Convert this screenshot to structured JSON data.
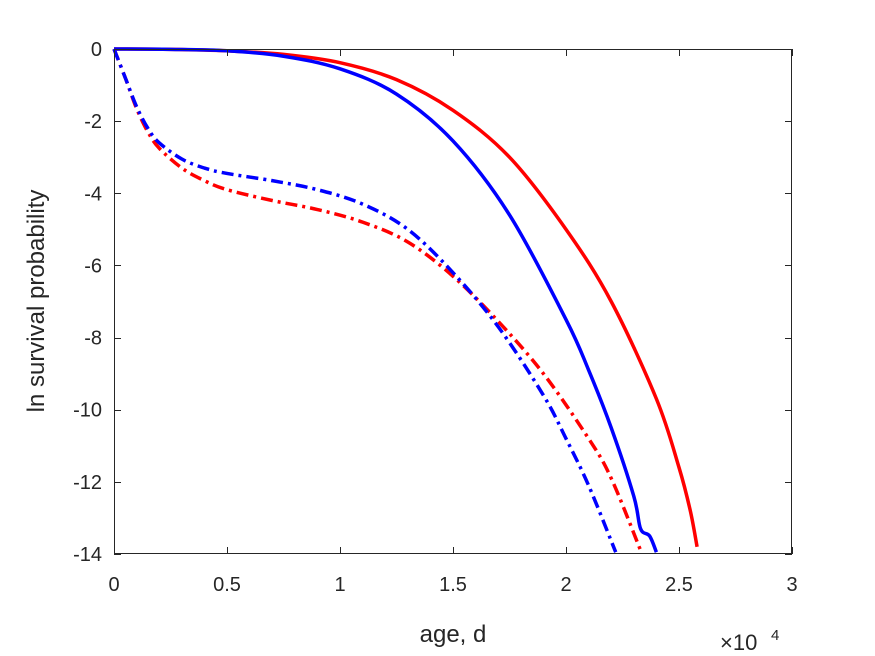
{
  "chart_data": {
    "type": "line",
    "xlabel": "age, d",
    "ylabel": "ln survival probability",
    "x_exponent_base": "×10",
    "x_exponent_power": "4",
    "xlim": [
      0,
      3
    ],
    "ylim": [
      -14,
      0
    ],
    "x_unit_note": "x values in units of 10^4 days",
    "xticks": [
      0,
      0.5,
      1,
      1.5,
      2,
      2.5,
      3
    ],
    "xtick_labels": [
      "0",
      "0.5",
      "1",
      "1.5",
      "2",
      "2.5",
      "3"
    ],
    "yticks": [
      0,
      -2,
      -4,
      -6,
      -8,
      -10,
      -12,
      -14
    ],
    "ytick_labels": [
      "0",
      "-2",
      "-4",
      "-6",
      "-8",
      "-10",
      "-12",
      "-14"
    ],
    "grid": false,
    "legend": "none",
    "series": [
      {
        "color": "#ff0000",
        "style": "solid",
        "x": [
          0.0,
          0.25,
          0.5,
          0.75,
          1.0,
          1.25,
          1.5,
          1.75,
          2.0,
          2.2,
          2.4,
          2.5,
          2.55,
          2.58
        ],
        "y": [
          0.0,
          -0.01,
          -0.05,
          -0.15,
          -0.38,
          -0.85,
          -1.7,
          -3.0,
          -5.0,
          -7.0,
          -9.7,
          -11.6,
          -12.8,
          -13.8
        ]
      },
      {
        "color": "#0000ff",
        "style": "solid",
        "x": [
          0.0,
          0.25,
          0.5,
          0.75,
          1.0,
          1.25,
          1.5,
          1.75,
          2.0,
          2.1,
          2.2,
          2.3,
          2.33,
          2.37,
          2.4
        ],
        "y": [
          0.0,
          -0.01,
          -0.05,
          -0.2,
          -0.55,
          -1.25,
          -2.55,
          -4.6,
          -7.5,
          -8.9,
          -10.5,
          -12.4,
          -13.3,
          -13.5,
          -13.95
        ]
      },
      {
        "color": "#ff0000",
        "style": "dashdot",
        "x": [
          0.0,
          0.05,
          0.1,
          0.15,
          0.2,
          0.3,
          0.4,
          0.5,
          0.7,
          0.9,
          1.1,
          1.3,
          1.5,
          1.7,
          1.9,
          2.1,
          2.2,
          2.33
        ],
        "y": [
          0.0,
          -0.8,
          -1.65,
          -2.3,
          -2.75,
          -3.3,
          -3.65,
          -3.9,
          -4.2,
          -4.45,
          -4.8,
          -5.35,
          -6.3,
          -7.55,
          -9.0,
          -10.8,
          -11.9,
          -13.9
        ]
      },
      {
        "color": "#0000ff",
        "style": "dashdot",
        "x": [
          0.0,
          0.05,
          0.1,
          0.15,
          0.2,
          0.3,
          0.4,
          0.5,
          0.7,
          0.9,
          1.1,
          1.3,
          1.5,
          1.7,
          1.9,
          2.0,
          2.1,
          2.22
        ],
        "y": [
          0.0,
          -0.8,
          -1.6,
          -2.2,
          -2.6,
          -3.05,
          -3.3,
          -3.45,
          -3.65,
          -3.9,
          -4.3,
          -5.0,
          -6.2,
          -7.7,
          -9.6,
          -10.8,
          -12.1,
          -13.95
        ]
      }
    ]
  }
}
